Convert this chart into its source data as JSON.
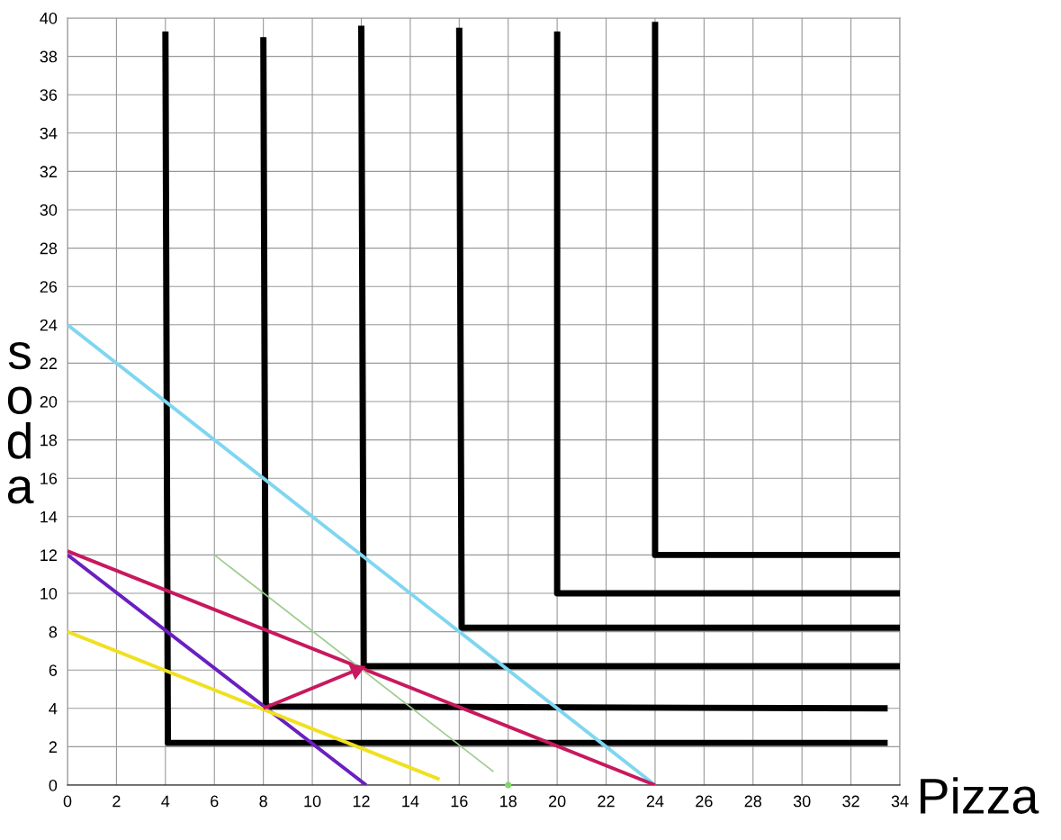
{
  "chart_data": {
    "type": "line",
    "xlabel": "Pizza",
    "ylabel": "soda",
    "xlim": [
      0,
      34
    ],
    "ylim": [
      0,
      40
    ],
    "xticks": [
      0,
      2,
      4,
      6,
      8,
      10,
      12,
      14,
      16,
      18,
      20,
      22,
      24,
      26,
      28,
      30,
      32,
      34
    ],
    "yticks": [
      0,
      2,
      4,
      6,
      8,
      10,
      12,
      14,
      16,
      18,
      20,
      22,
      24,
      26,
      28,
      30,
      32,
      34,
      36,
      38,
      40
    ],
    "grid": true,
    "legend": false,
    "marker": "none",
    "line_style": "solid",
    "series": [
      {
        "color": "#000000",
        "x": [
          4,
          4.1,
          33.5
        ],
        "values": [
          39.3,
          2.2,
          2.2
        ]
      },
      {
        "color": "#000000",
        "x": [
          8,
          8.1,
          33.5
        ],
        "values": [
          39,
          4.1,
          4
        ]
      },
      {
        "color": "#000000",
        "x": [
          12,
          12.1,
          34
        ],
        "values": [
          39.6,
          6.2,
          6.2
        ]
      },
      {
        "color": "#000000",
        "x": [
          16,
          16.1,
          34
        ],
        "values": [
          39.5,
          8.2,
          8.2
        ]
      },
      {
        "color": "#000000",
        "x": [
          20,
          20,
          34
        ],
        "values": [
          39.3,
          10,
          10
        ]
      },
      {
        "color": "#000000",
        "x": [
          24,
          24,
          34
        ],
        "values": [
          39.8,
          12,
          12
        ]
      },
      {
        "color": "#7fd6f0",
        "x": [
          0,
          24
        ],
        "values": [
          24,
          0
        ]
      },
      {
        "color": "#c8185e",
        "x": [
          0,
          24
        ],
        "values": [
          12.2,
          0
        ]
      },
      {
        "color": "#6a1fc0",
        "x": [
          0,
          12.2
        ],
        "values": [
          12,
          0
        ]
      },
      {
        "color": "#f0e020",
        "x": [
          0,
          15.2
        ],
        "values": [
          8,
          0.3
        ]
      },
      {
        "color": "#9ccc8c",
        "x": [
          6,
          17.4
        ],
        "values": [
          12,
          0.7
        ]
      },
      {
        "color": "#c8185e",
        "x": [
          8,
          11.8
        ],
        "values": [
          4,
          6
        ],
        "marker": "triangle"
      },
      {
        "type": "scatter",
        "color": "#7fd86c",
        "x": [
          18
        ],
        "values": [
          0
        ],
        "marker": "circle"
      }
    ]
  }
}
